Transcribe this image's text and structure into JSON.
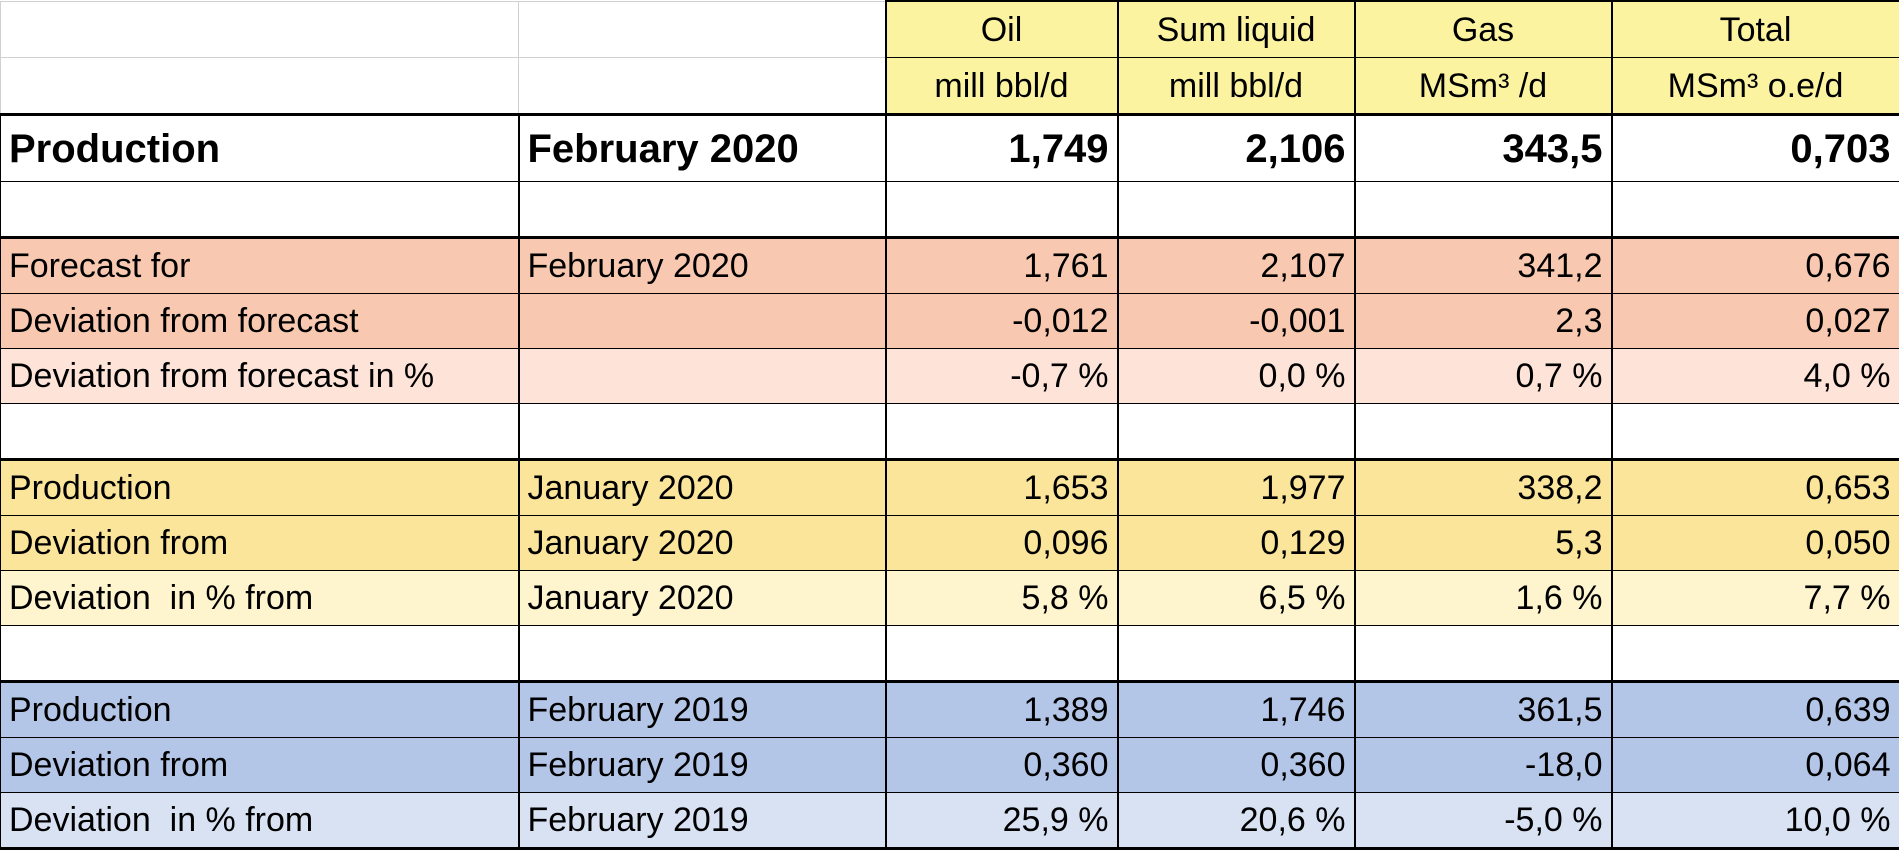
{
  "header": {
    "columns": [
      {
        "name": "Oil",
        "unit": "mill bbl/d"
      },
      {
        "name": "Sum liquid",
        "unit": "mill bbl/d"
      },
      {
        "name": "Gas",
        "unit": "MSm³ /d"
      },
      {
        "name": "Total",
        "unit": "MSm³ o.e/d"
      }
    ]
  },
  "production": {
    "label": "Production",
    "period": "February 2020",
    "values": [
      "1,749",
      "2,106",
      "343,5",
      "0,703"
    ]
  },
  "forecast_group": [
    {
      "label": "Forecast for",
      "period": "February 2020",
      "values": [
        "1,761",
        "2,107",
        "341,2",
        "0,676"
      ]
    },
    {
      "label": "Deviation from forecast",
      "period": "",
      "values": [
        "-0,012",
        "-0,001",
        "2,3",
        "0,027"
      ]
    },
    {
      "label": "Deviation from forecast in %",
      "period": "",
      "values": [
        "-0,7 %",
        "0,0 %",
        "0,7 %",
        "4,0 %"
      ]
    }
  ],
  "january_group": [
    {
      "label": "Production",
      "period": "January 2020",
      "values": [
        "1,653",
        "1,977",
        "338,2",
        "0,653"
      ]
    },
    {
      "label": "Deviation from",
      "period": "January 2020",
      "values": [
        "0,096",
        "0,129",
        "5,3",
        "0,050"
      ]
    },
    {
      "label": "Deviation  in % from",
      "period": "January 2020",
      "values": [
        "5,8 %",
        "6,5 %",
        "1,6 %",
        "7,7 %"
      ]
    }
  ],
  "february_2019_group": [
    {
      "label": "Production",
      "period": "February 2019",
      "values": [
        "1,389",
        "1,746",
        "361,5",
        "0,639"
      ]
    },
    {
      "label": "Deviation from",
      "period": "February 2019",
      "values": [
        "0,360",
        "0,360",
        "-18,0",
        "0,064"
      ]
    },
    {
      "label": "Deviation  in % from",
      "period": "February 2019",
      "values": [
        "25,9 %",
        "20,6 %",
        "-5,0 %",
        "10,0 %"
      ]
    }
  ],
  "colors": {
    "header": "#fbf3a0",
    "forecast": "#f8c9b0",
    "forecast_light": "#fde3d8",
    "january": "#fbe59b",
    "january_light": "#fef4ce",
    "february_2019": "#b4c6e7",
    "february_2019_light": "#d9e2f3"
  }
}
